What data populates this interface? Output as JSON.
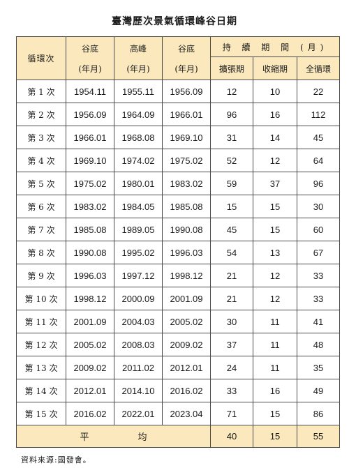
{
  "title": "臺灣歷次景氣循環峰谷日期",
  "header": {
    "cycle": "循環次",
    "trough_start": "谷底",
    "peak": "高峰",
    "trough_end": "谷底",
    "ym": "(年月)",
    "duration": "持 續 期 間 (月)",
    "expansion": "擴張期",
    "contraction": "收縮期",
    "full_cycle": "全循環"
  },
  "rows": [
    {
      "cycle": "第 1 次",
      "trough_start": "1954.11",
      "peak": "1955.11",
      "trough_end": "1956.09",
      "expansion": "12",
      "contraction": "10",
      "full": "22"
    },
    {
      "cycle": "第 2 次",
      "trough_start": "1956.09",
      "peak": "1964.09",
      "trough_end": "1966.01",
      "expansion": "96",
      "contraction": "16",
      "full": "112"
    },
    {
      "cycle": "第 3 次",
      "trough_start": "1966.01",
      "peak": "1968.08",
      "trough_end": "1969.10",
      "expansion": "31",
      "contraction": "14",
      "full": "45"
    },
    {
      "cycle": "第 4 次",
      "trough_start": "1969.10",
      "peak": "1974.02",
      "trough_end": "1975.02",
      "expansion": "52",
      "contraction": "12",
      "full": "64"
    },
    {
      "cycle": "第 5 次",
      "trough_start": "1975.02",
      "peak": "1980.01",
      "trough_end": "1983.02",
      "expansion": "59",
      "contraction": "37",
      "full": "96"
    },
    {
      "cycle": "第 6 次",
      "trough_start": "1983.02",
      "peak": "1984.05",
      "trough_end": "1985.08",
      "expansion": "15",
      "contraction": "15",
      "full": "30"
    },
    {
      "cycle": "第 7 次",
      "trough_start": "1985.08",
      "peak": "1989.05",
      "trough_end": "1990.08",
      "expansion": "45",
      "contraction": "15",
      "full": "60"
    },
    {
      "cycle": "第 8 次",
      "trough_start": "1990.08",
      "peak": "1995.02",
      "trough_end": "1996.03",
      "expansion": "54",
      "contraction": "13",
      "full": "67"
    },
    {
      "cycle": "第 9 次",
      "trough_start": "1996.03",
      "peak": "1997.12",
      "trough_end": "1998.12",
      "expansion": "21",
      "contraction": "12",
      "full": "33"
    },
    {
      "cycle": "第 10 次",
      "trough_start": "1998.12",
      "peak": "2000.09",
      "trough_end": "2001.09",
      "expansion": "21",
      "contraction": "12",
      "full": "33"
    },
    {
      "cycle": "第 11 次",
      "trough_start": "2001.09",
      "peak": "2004.03",
      "trough_end": "2005.02",
      "expansion": "30",
      "contraction": "11",
      "full": "41"
    },
    {
      "cycle": "第 12 次",
      "trough_start": "2005.02",
      "peak": "2008.03",
      "trough_end": "2009.02",
      "expansion": "37",
      "contraction": "11",
      "full": "48"
    },
    {
      "cycle": "第 13 次",
      "trough_start": "2009.02",
      "peak": "2011.02",
      "trough_end": "2012.01",
      "expansion": "24",
      "contraction": "11",
      "full": "35"
    },
    {
      "cycle": "第 14 次",
      "trough_start": "2012.01",
      "peak": "2014.10",
      "trough_end": "2016.02",
      "expansion": "33",
      "contraction": "16",
      "full": "49"
    },
    {
      "cycle": "第 15 次",
      "trough_start": "2016.02",
      "peak": "2022.01",
      "trough_end": "2023.04",
      "expansion": "71",
      "contraction": "15",
      "full": "86"
    }
  ],
  "average": {
    "label": "平均",
    "expansion": "40",
    "contraction": "15",
    "full": "55"
  },
  "source": "資料來源:國發會。",
  "colors": {
    "header_bg": "#fbe9bd",
    "border": "#4a4a4a"
  }
}
